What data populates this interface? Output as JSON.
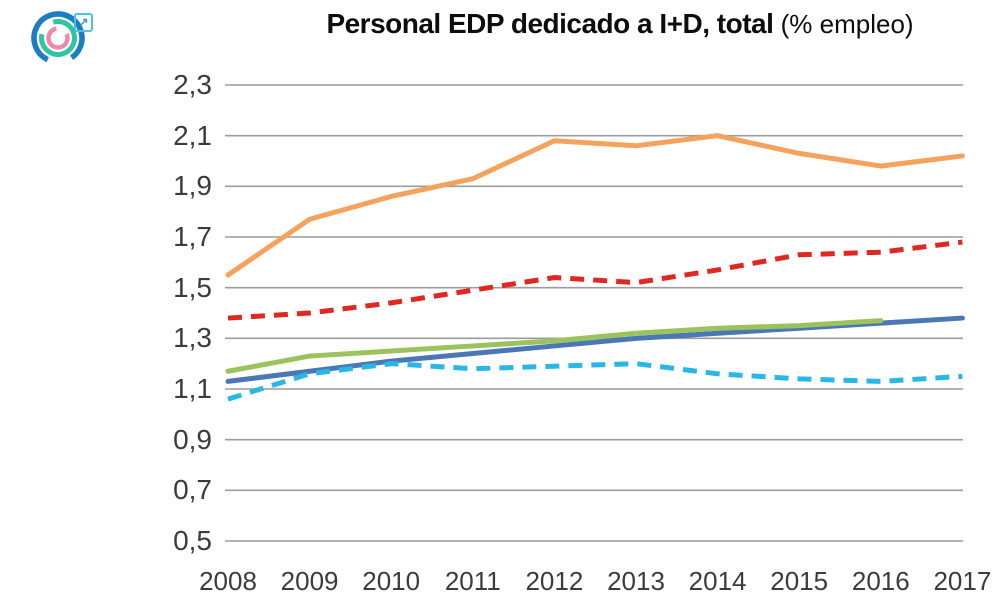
{
  "header": {
    "logo_icon": "epdata-logo",
    "logo_colors": {
      "outer_ring": "#1B7EC2",
      "middle_ring": "#2EC4A5",
      "inner_ring": "#F287A9"
    },
    "external_link_glyph": "↗",
    "title_bold": "Personal EDP dedicado a I+D, total",
    "title_suffix": " (% empleo)"
  },
  "chart_data": {
    "type": "line",
    "title": "Personal EDP dedicado a I+D, total (% empleo)",
    "xlabel": "",
    "ylabel": "",
    "x_tick_labels": [
      "2008",
      "2009",
      "2010",
      "2011",
      "2012",
      "2013",
      "2014",
      "2015",
      "2016",
      "2017"
    ],
    "y_tick_labels": [
      "2,3",
      "2,1",
      "1,9",
      "1,7",
      "1,5",
      "1,3",
      "1,1",
      "0,9",
      "0,7",
      "0,5"
    ],
    "ylim": [
      0.5,
      2.3
    ],
    "decimal_separator": ",",
    "grid": true,
    "grid_color": "#9C9C9C",
    "legend": "none",
    "series": [
      {
        "name": "blue-solid",
        "color": "#4A77B6",
        "style": "solid",
        "values": [
          1.13,
          1.17,
          1.21,
          1.24,
          1.27,
          1.3,
          1.32,
          1.34,
          1.36,
          1.38
        ]
      },
      {
        "name": "green-solid",
        "color": "#9BC25D",
        "style": "solid",
        "values": [
          1.17,
          1.23,
          1.25,
          1.27,
          1.29,
          1.32,
          1.34,
          1.35,
          1.37,
          null
        ]
      },
      {
        "name": "cyan-dashed",
        "color": "#29B7E8",
        "style": "dashed",
        "values": [
          1.06,
          1.16,
          1.2,
          1.18,
          1.19,
          1.2,
          1.16,
          1.14,
          1.13,
          1.15
        ]
      },
      {
        "name": "red-dashed",
        "color": "#E02820",
        "style": "dashed",
        "values": [
          1.38,
          1.4,
          1.44,
          1.49,
          1.54,
          1.52,
          1.57,
          1.63,
          1.64,
          1.68
        ]
      },
      {
        "name": "orange-solid",
        "color": "#F5A25C",
        "style": "solid",
        "values": [
          1.55,
          1.77,
          1.86,
          1.93,
          2.08,
          2.06,
          2.1,
          2.03,
          1.98,
          2.02
        ]
      }
    ]
  }
}
